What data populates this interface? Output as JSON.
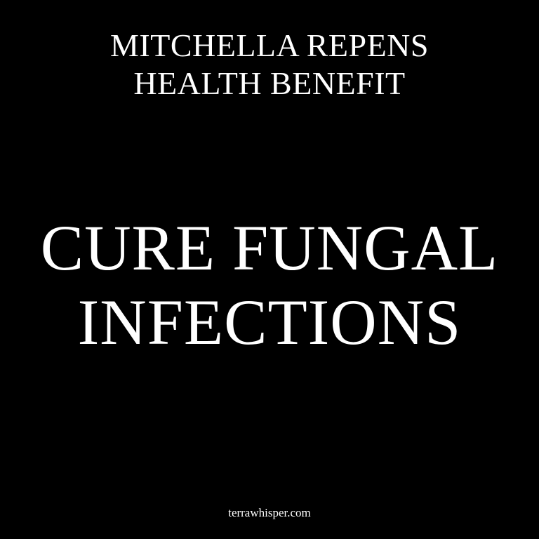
{
  "header": {
    "line1": "MITCHELLA REPENS",
    "line2": "HEALTH BENEFIT"
  },
  "headline": {
    "line1": "CURE FUNGAL",
    "line2": "INFECTIONS"
  },
  "footer": {
    "site": "terrawhisper.com"
  },
  "colors": {
    "background": "#000000",
    "text": "#ffffff"
  }
}
